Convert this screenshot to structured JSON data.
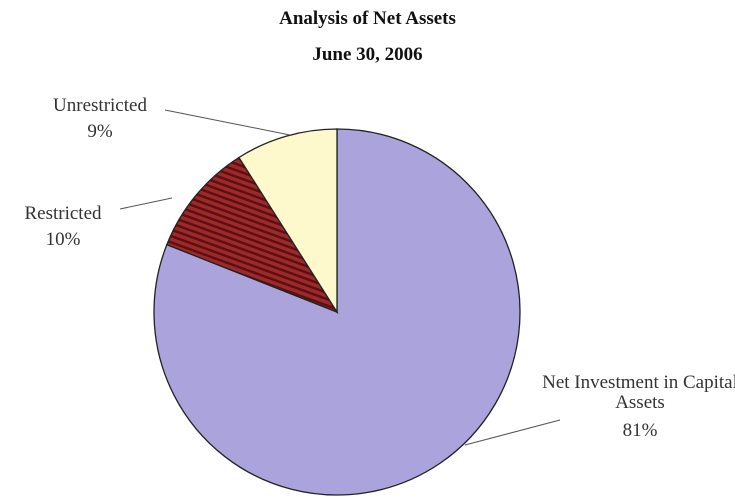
{
  "chart_data": {
    "type": "pie",
    "title": "Analysis of Net Assets",
    "subtitle": "June 30, 2006",
    "categories": [
      "Net Investment in Capital Assets",
      "Restricted",
      "Unrestricted"
    ],
    "values": [
      81,
      10,
      9
    ],
    "value_labels": [
      "81%",
      "10%",
      "9%"
    ],
    "colors": [
      "#aba3dc",
      "#9c2a2a",
      "#fdf9cc"
    ]
  }
}
